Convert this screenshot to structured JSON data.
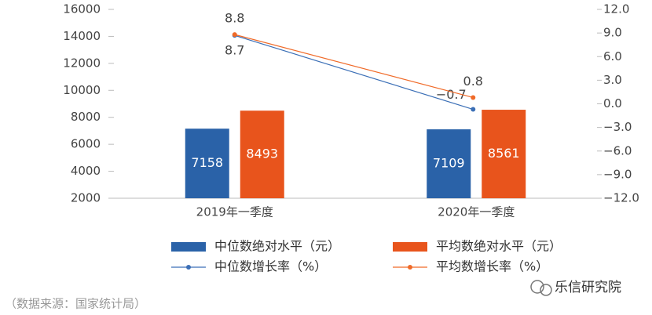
{
  "chart_data": {
    "type": "bar",
    "categories": [
      "2019年一季度",
      "2020年一季度"
    ],
    "series": [
      {
        "name": "中位数绝对水平（元）",
        "type": "bar",
        "color": "#2a62a8",
        "values": [
          7158,
          7109
        ]
      },
      {
        "name": "平均数绝对水平（元）",
        "type": "bar",
        "color": "#e8541c",
        "values": [
          8493,
          8561
        ]
      },
      {
        "name": "中位数增长率（%）",
        "type": "line",
        "axis": "y2",
        "color": "#3b6fb6",
        "values": [
          8.7,
          -0.7
        ],
        "value_labels": [
          "8.7",
          "−0.7"
        ]
      },
      {
        "name": "平均数增长率（%）",
        "type": "line",
        "axis": "y2",
        "color": "#f06a28",
        "values": [
          8.8,
          0.8
        ],
        "value_labels": [
          "8.8",
          "0.8"
        ]
      }
    ],
    "ylim": [
      2000,
      16000
    ],
    "yticks": [
      2000,
      4000,
      6000,
      8000,
      10000,
      12000,
      14000,
      16000
    ],
    "y2lim": [
      -12,
      12
    ],
    "y2ticks": [
      {
        "value": -12,
        "label": "−12.0"
      },
      {
        "value": -9,
        "label": "−9.0"
      },
      {
        "value": -6,
        "label": "−6.0"
      },
      {
        "value": -3,
        "label": "−3.0"
      },
      {
        "value": 0,
        "label": "0.0"
      },
      {
        "value": 3,
        "label": "3.0"
      },
      {
        "value": 6,
        "label": "6.0"
      },
      {
        "value": 9,
        "label": "9.0"
      },
      {
        "value": 12,
        "label": "12.0"
      }
    ],
    "grid": false
  },
  "source": "（数据来源：国家统计局）",
  "watermark": "乐信研究院"
}
